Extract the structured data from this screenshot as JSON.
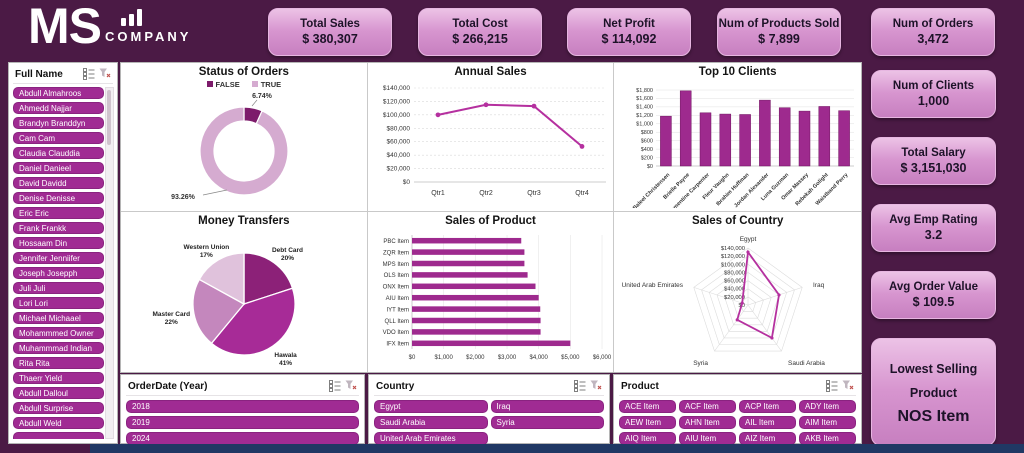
{
  "logo": {
    "title": "MS",
    "subtitle": "COMPANY",
    "icon": "bar-chart-icon"
  },
  "kpi_cards": [
    {
      "label": "Total Sales",
      "value": "$ 380,307"
    },
    {
      "label": "Total Cost",
      "value": "$ 266,215"
    },
    {
      "label": "Net Profit",
      "value": "$ 114,092"
    },
    {
      "label": "Num of Products Sold",
      "value": "$ 7,899"
    },
    {
      "label": "Num of Orders",
      "value": "3,472"
    }
  ],
  "side_cards": [
    {
      "label": "Num of Clients",
      "value": "1,000"
    },
    {
      "label": "Total Salary",
      "value": "$ 3,151,030"
    },
    {
      "label": "Avg Emp Rating",
      "value": "3.2"
    },
    {
      "label": "Avg Order Value",
      "value": "$ 109.5"
    },
    {
      "label": "Lowest Selling Product",
      "value": "NOS Item"
    }
  ],
  "name_slicer": {
    "title": "Full Name",
    "items": [
      "Abdull Almahroos",
      "Ahmedd Najjar",
      "Brandyn Branddyn",
      "Cam Cam",
      "Claudia Clauddia",
      "Daniel Danieel",
      "David Davidd",
      "Denise Denisse",
      "Eric Eric",
      "Frank Frankk",
      "Hossaam Din",
      "Jennifer Jenniifer",
      "Joseph Josepph",
      "Juli Juli",
      "Lori Lori",
      "Michael Michaael",
      "Mohammmed Owner",
      "Muhammmad Indian",
      "Rita Rita",
      "Thaerr Yield",
      "Abdull Dalloul",
      "Abdull Surprise",
      "Abdull Weld"
    ]
  },
  "chart_data": [
    {
      "type": "donut",
      "title": "Status of Orders",
      "legend": [
        {
          "label": "FALSE",
          "color": "#7d1b6b"
        },
        {
          "label": "TRUE",
          "color": "#d5abd0"
        }
      ],
      "slices": [
        {
          "label": "FALSE",
          "pct": 6.74,
          "color": "#7d1b6b"
        },
        {
          "label": "TRUE",
          "pct": 93.26,
          "color": "#d5abd0"
        }
      ],
      "data_labels": [
        "6.74%",
        "93.26%"
      ]
    },
    {
      "type": "line",
      "title": "Annual Sales",
      "categories": [
        "Qtr1",
        "Qtr2",
        "Qtr3",
        "Qtr4"
      ],
      "values": [
        100000,
        115000,
        113000,
        53000
      ],
      "ylim": [
        0,
        140000
      ],
      "ytick": 20000,
      "color": "#b5309f"
    },
    {
      "type": "bar",
      "title": "Top 10 Clients",
      "categories": [
        "Baleel Christensen",
        "Brielle Payne",
        "Clementine Carpenter",
        "Fleur Vaughn",
        "Ibrahim Huffman",
        "Jordan Alexander",
        "Luna Guzman",
        "Omar Massey",
        "Rebekah Golight",
        "Waistband Perry"
      ],
      "values": [
        1180,
        1780,
        1260,
        1230,
        1220,
        1560,
        1380,
        1300,
        1410,
        1310
      ],
      "ylim": [
        0,
        1800
      ],
      "ytick": 200,
      "color": "#9e2a8e"
    },
    {
      "type": "pie",
      "title": "Money Transfers",
      "slices": [
        {
          "label": "Debt Card",
          "pct": 20,
          "color": "#8c2178"
        },
        {
          "label": "Hawala",
          "pct": 41,
          "color": "#a72b97"
        },
        {
          "label": "Master Card",
          "pct": 22,
          "color": "#c487bd"
        },
        {
          "label": "Western Union",
          "pct": 17,
          "color": "#e0c2dc"
        }
      ]
    },
    {
      "type": "hbar",
      "title": "Sales of Product",
      "categories": [
        "PBC Item",
        "ZQR Item",
        "MPS Item",
        "OLS Item",
        "ONX Item",
        "AIU Item",
        "IYT Item",
        "QLL Item",
        "VDO Item",
        "IFX Item"
      ],
      "values": [
        3450,
        3550,
        3550,
        3650,
        3900,
        4000,
        4050,
        4060,
        4060,
        5000
      ],
      "xlim": [
        0,
        6000
      ],
      "xtick": 1000,
      "color": "#9e2a8e"
    },
    {
      "type": "radar",
      "title": "Sales of Country",
      "categories": [
        "Egypt",
        "Iraq",
        "Saudi Arabia",
        "Syria",
        "United Arab Emirates"
      ],
      "values": [
        130000,
        80000,
        100000,
        45000,
        15000
      ],
      "rlim": [
        0,
        140000
      ],
      "rtick": 20000,
      "color": "#b5309f"
    }
  ],
  "slicers": [
    {
      "title": "OrderDate (Year)",
      "items": [
        "2018",
        "2019",
        "2024"
      ]
    },
    {
      "title": "Country",
      "items": [
        "Egypt",
        "Iraq",
        "Saudi Arabia",
        "Syria",
        "United Arab Emirates"
      ]
    },
    {
      "title": "Product",
      "items": [
        "ACE Item",
        "ACF Item",
        "ACP Item",
        "ADY Item",
        "AEW Item",
        "AHN Item",
        "AIL Item",
        "AIM Item",
        "AIQ Item",
        "AIU Item",
        "AIZ Item",
        "AKB Item"
      ]
    }
  ]
}
